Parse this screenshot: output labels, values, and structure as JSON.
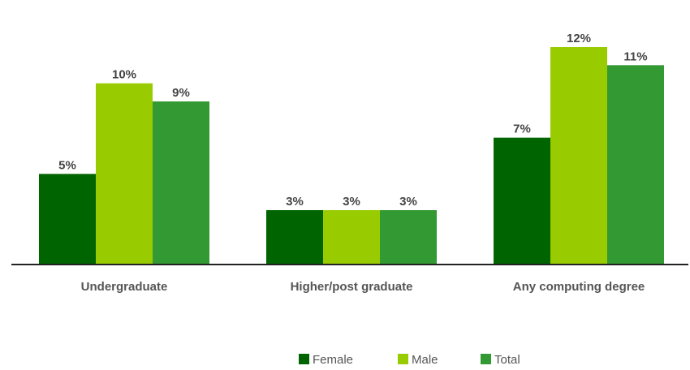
{
  "chart_data": {
    "type": "bar",
    "categories": [
      "Undergraduate",
      "Higher/post graduate",
      "Any computing degree"
    ],
    "series": [
      {
        "name": "Female",
        "values": [
          5,
          3,
          7
        ],
        "labels": [
          "5%",
          "3%",
          "7%"
        ],
        "color": "#006400"
      },
      {
        "name": "Male",
        "values": [
          10,
          3,
          12
        ],
        "labels": [
          "10%",
          "3%",
          "12%"
        ],
        "color": "#99cc00"
      },
      {
        "name": "Total",
        "values": [
          9,
          3,
          11
        ],
        "labels": [
          "9%",
          "3%",
          "11%"
        ],
        "color": "#339933"
      }
    ],
    "ylim": [
      0,
      12
    ],
    "grid": false,
    "legend": "bottom-center",
    "axis_color": "#222222"
  }
}
